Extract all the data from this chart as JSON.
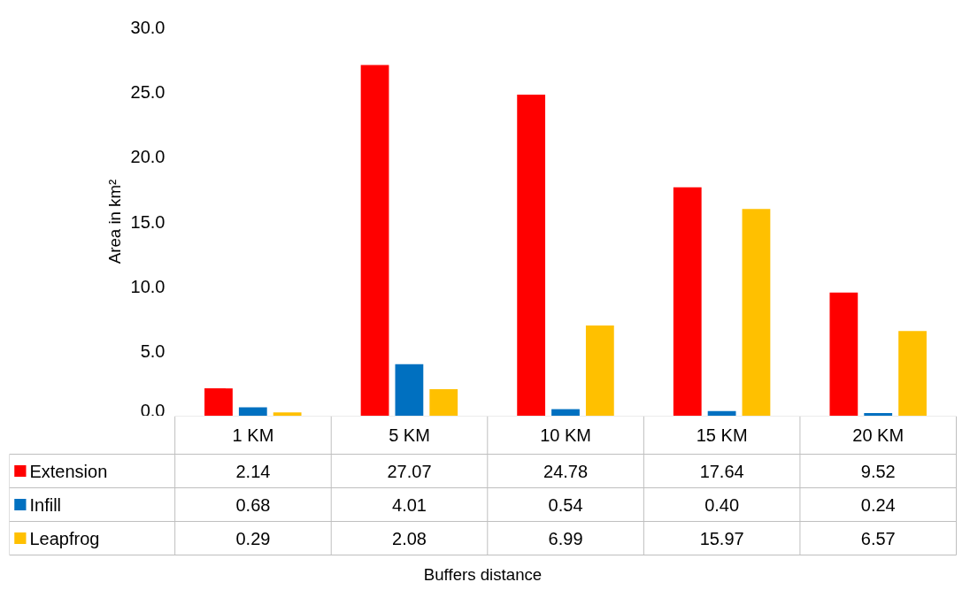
{
  "chart_data": {
    "type": "bar",
    "annotations": [
      "Buffers distance"
    ],
    "ylabel": "Area in km²",
    "categories": [
      "1 KM",
      "5 KM",
      "10 KM",
      "15 KM",
      "20 KM"
    ],
    "series": [
      {
        "name": "Extension",
        "color": "#ff0000",
        "values": [
          2.14,
          27.07,
          24.78,
          17.64,
          9.52
        ],
        "value_labels": [
          "2.14",
          "27.07",
          "24.78",
          "17.64",
          "9.52"
        ]
      },
      {
        "name": "Infill",
        "color": "#0070c0",
        "values": [
          0.68,
          4.01,
          0.54,
          0.4,
          0.24
        ],
        "value_labels": [
          "0.68",
          "4.01",
          "0.54",
          "0.40",
          "0.24"
        ]
      },
      {
        "name": "Leapfrog",
        "color": "#ffc000",
        "values": [
          0.29,
          2.08,
          6.99,
          15.97,
          6.57
        ],
        "value_labels": [
          "0.29",
          "2.08",
          "6.99",
          "15.97",
          "6.57"
        ]
      }
    ],
    "ylim": [
      0,
      30
    ],
    "yticks": [
      {
        "value": 0,
        "label": "0.0"
      },
      {
        "value": 5,
        "label": "5.0"
      },
      {
        "value": 10,
        "label": "10.0"
      },
      {
        "value": 15,
        "label": "15.0"
      },
      {
        "value": 20,
        "label": "20.0"
      },
      {
        "value": 25,
        "label": "25.0"
      },
      {
        "value": 30,
        "label": "30.0"
      }
    ],
    "grid": false,
    "legend": "bottom"
  }
}
